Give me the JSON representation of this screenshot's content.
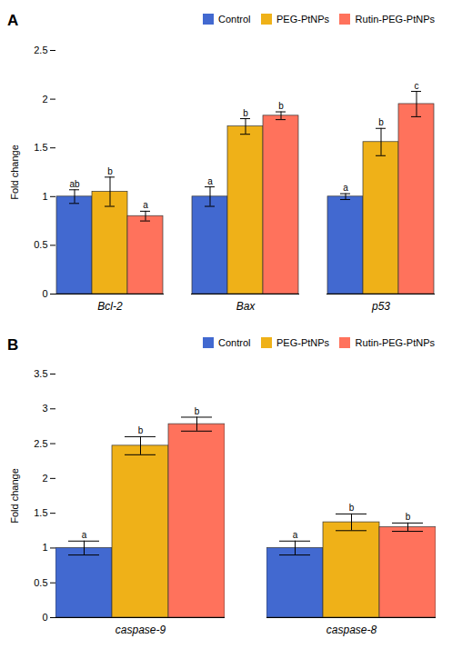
{
  "chart_data": [
    {
      "type": "bar",
      "title": "A",
      "categories": [
        "Bcl-2",
        "Bax",
        "p53"
      ],
      "series": [
        {
          "name": "Control",
          "values": [
            1.0,
            1.0,
            1.0
          ],
          "errors": [
            0.07,
            0.1,
            0.03
          ],
          "annotations": [
            "ab",
            "a",
            "a"
          ]
        },
        {
          "name": "PEG-PtNPs",
          "values": [
            1.05,
            1.72,
            1.56
          ],
          "errors": [
            0.15,
            0.08,
            0.14
          ],
          "annotations": [
            "b",
            "b",
            "b"
          ]
        },
        {
          "name": "Rutin-PEG-PtNPs",
          "values": [
            0.8,
            1.83,
            1.95
          ],
          "errors": [
            0.05,
            0.04,
            0.13
          ],
          "annotations": [
            "a",
            "b",
            "c"
          ]
        }
      ],
      "ylabel": "Fold change",
      "ylim": [
        0,
        2.5
      ],
      "yticks": [
        0,
        0.5,
        1,
        1.5,
        2,
        2.5
      ],
      "grid": false,
      "legend": "upper right"
    },
    {
      "type": "bar",
      "title": "B",
      "categories": [
        "caspase-9",
        "caspase-8"
      ],
      "series": [
        {
          "name": "Control",
          "values": [
            1.0,
            1.0
          ],
          "errors": [
            0.1,
            0.1
          ],
          "annotations": [
            "a",
            "a"
          ]
        },
        {
          "name": "PEG-PtNPs",
          "values": [
            2.47,
            1.37
          ],
          "errors": [
            0.13,
            0.12
          ],
          "annotations": [
            "b",
            "b"
          ]
        },
        {
          "name": "Rutin-PEG-PtNPs",
          "values": [
            2.78,
            1.3
          ],
          "errors": [
            0.1,
            0.06
          ],
          "annotations": [
            "b",
            "b"
          ]
        }
      ],
      "ylabel": "Fold change",
      "ylim": [
        0,
        3.5
      ],
      "yticks": [
        0,
        0.5,
        1,
        1.5,
        2,
        2.5,
        3,
        3.5
      ],
      "grid": false,
      "legend": "upper right"
    }
  ]
}
